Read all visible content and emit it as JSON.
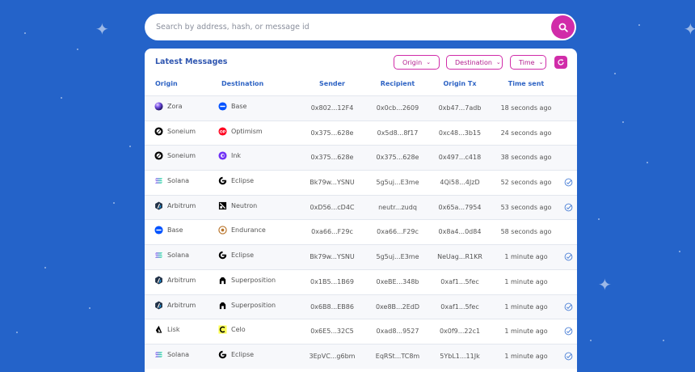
{
  "search": {
    "placeholder": "Search by address, hash, or message id"
  },
  "card": {
    "title": "Latest Messages",
    "filters": [
      {
        "label": "Origin"
      },
      {
        "label": "Destination"
      },
      {
        "label": "Time"
      }
    ]
  },
  "columns": [
    "Origin",
    "Destination",
    "Sender",
    "Recipient",
    "Origin Tx",
    "Time sent"
  ],
  "rows": [
    {
      "origin": "Zora",
      "origin_icon": "zora-icon",
      "destination": "Base",
      "dest_icon": "base-icon",
      "sender": "0x802...12F4",
      "recipient": "0x0cb...2609",
      "origin_tx": "0xb47...7adb",
      "time": "18 seconds ago",
      "delivered": false
    },
    {
      "origin": "Soneium",
      "origin_icon": "soneium-icon",
      "destination": "Optimism",
      "dest_icon": "optimism-icon",
      "sender": "0x375...628e",
      "recipient": "0x5d8...8f17",
      "origin_tx": "0xc48...3b15",
      "time": "24 seconds ago",
      "delivered": false
    },
    {
      "origin": "Soneium",
      "origin_icon": "soneium-icon",
      "destination": "Ink",
      "dest_icon": "ink-icon",
      "sender": "0x375...628e",
      "recipient": "0x375...628e",
      "origin_tx": "0x497...c418",
      "time": "38 seconds ago",
      "delivered": false
    },
    {
      "origin": "Solana",
      "origin_icon": "solana-icon",
      "destination": "Eclipse",
      "dest_icon": "eclipse-icon",
      "sender": "Bk79w...YSNU",
      "recipient": "5g5uj...E3me",
      "origin_tx": "4Qi58...4JzD",
      "time": "52 seconds ago",
      "delivered": true
    },
    {
      "origin": "Arbitrum",
      "origin_icon": "arbitrum-icon",
      "destination": "Neutron",
      "dest_icon": "neutron-icon",
      "sender": "0xD56...cD4C",
      "recipient": "neutr...zudq",
      "origin_tx": "0x65a...7954",
      "time": "53 seconds ago",
      "delivered": true
    },
    {
      "origin": "Base",
      "origin_icon": "base-icon",
      "destination": "Endurance",
      "dest_icon": "endurance-icon",
      "sender": "0xa66...F29c",
      "recipient": "0xa66...F29c",
      "origin_tx": "0x8a4...0d84",
      "time": "58 seconds ago",
      "delivered": false
    },
    {
      "origin": "Solana",
      "origin_icon": "solana-icon",
      "destination": "Eclipse",
      "dest_icon": "eclipse-icon",
      "sender": "Bk79w...YSNU",
      "recipient": "5g5uj...E3me",
      "origin_tx": "NeUag...R1KR",
      "time": "1 minute ago",
      "delivered": true
    },
    {
      "origin": "Arbitrum",
      "origin_icon": "arbitrum-icon",
      "destination": "Superposition",
      "dest_icon": "superposition-icon",
      "sender": "0x1B5...1B69",
      "recipient": "0xeBE...348b",
      "origin_tx": "0xaf1...5fec",
      "time": "1 minute ago",
      "delivered": false
    },
    {
      "origin": "Arbitrum",
      "origin_icon": "arbitrum-icon",
      "destination": "Superposition",
      "dest_icon": "superposition-icon",
      "sender": "0x6B8...EB86",
      "recipient": "0xe8B...2EdD",
      "origin_tx": "0xaf1...5fec",
      "time": "1 minute ago",
      "delivered": true
    },
    {
      "origin": "Lisk",
      "origin_icon": "lisk-icon",
      "destination": "Celo",
      "dest_icon": "celo-icon",
      "sender": "0x6E5...32C5",
      "recipient": "0xad8...9527",
      "origin_tx": "0x0f9...22c1",
      "time": "1 minute ago",
      "delivered": true
    },
    {
      "origin": "Solana",
      "origin_icon": "solana-icon",
      "destination": "Eclipse",
      "dest_icon": "eclipse-icon",
      "sender": "3EpVC...g6bm",
      "recipient": "EqRSt...TC8m",
      "origin_tx": "5YbL1...11Jk",
      "time": "1 minute ago",
      "delivered": true
    }
  ],
  "colors": {
    "background": "#2463c9",
    "accent": "#d12ca9",
    "header_text": "#2f64c4",
    "title": "#2f56b0"
  }
}
